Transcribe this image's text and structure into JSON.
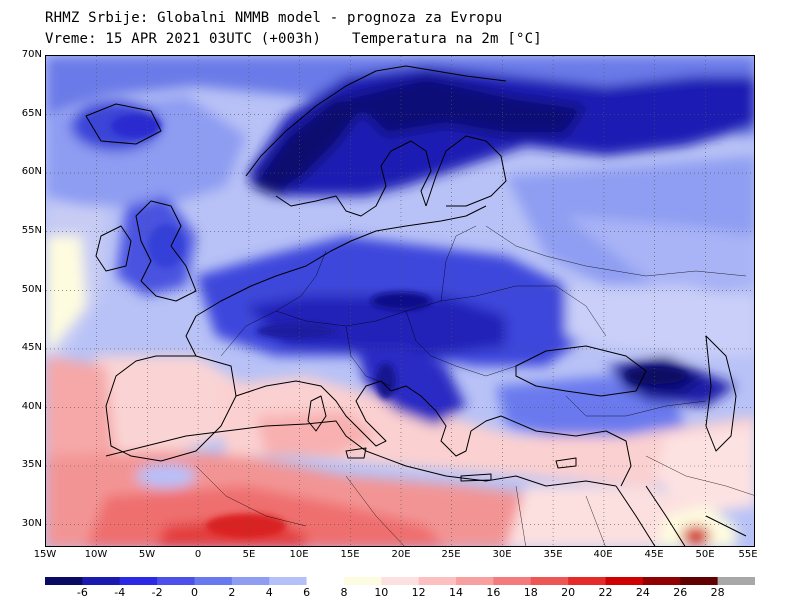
{
  "header": {
    "line1": "RHMZ Srbije: Globalni NMMB model - prognoza za Evropu",
    "line2": "Vreme: 15 APR 2021 03UTC (+003h)",
    "line3": "Temperatura na 2m [°C]"
  },
  "axes": {
    "lat_labels": [
      "70N",
      "65N",
      "60N",
      "55N",
      "50N",
      "45N",
      "40N",
      "35N",
      "30N"
    ],
    "lon_labels": [
      "15W",
      "10W",
      "5W",
      "0",
      "5E",
      "10E",
      "15E",
      "20E",
      "25E",
      "30E",
      "35E",
      "40E",
      "45E",
      "50E",
      "55E"
    ],
    "lat_range": [
      28,
      70
    ],
    "lon_range": [
      -15,
      55
    ]
  },
  "legend": {
    "labels": [
      "-6",
      "-4",
      "-2",
      "0",
      "2",
      "4",
      "6",
      "8",
      "10",
      "12",
      "14",
      "16",
      "18",
      "20",
      "22",
      "24",
      "26",
      "28"
    ],
    "colors": [
      "#0a0a64",
      "#1a1ab0",
      "#2a2ae6",
      "#4a50e8",
      "#6878ee",
      "#8e9cf2",
      "#b6c0f8",
      "#ffffff",
      "#fefce0",
      "#fde0e0",
      "#fcc0c0",
      "#f8a0a0",
      "#f37b7b",
      "#ee5555",
      "#e62a2a",
      "#d00000",
      "#900000",
      "#600000",
      "#a8a8a8"
    ]
  }
}
